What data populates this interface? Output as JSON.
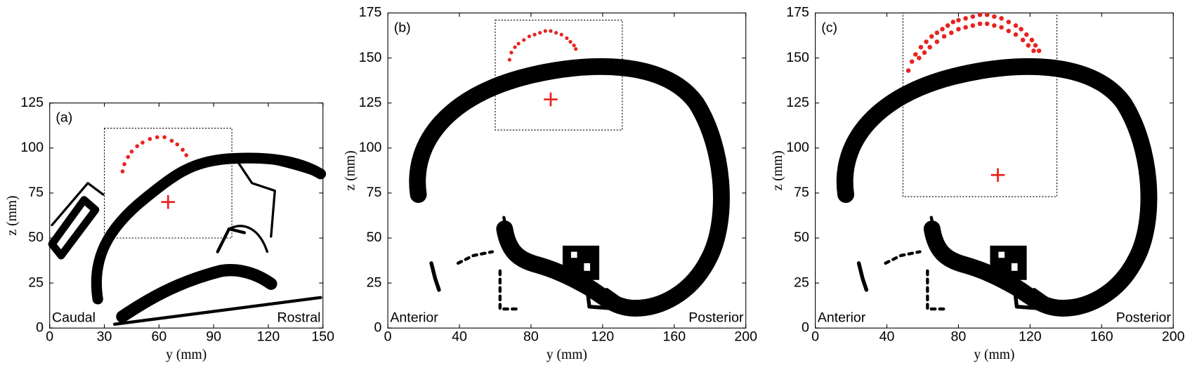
{
  "chart_data": [
    {
      "type": "scatter",
      "panel_label": "(a)",
      "xlabel": "y (mm)",
      "ylabel": "z (mm)",
      "xlim": [
        0,
        150
      ],
      "ylim": [
        0,
        125
      ],
      "xticks": [
        0,
        30,
        60,
        90,
        120,
        150
      ],
      "yticks": [
        0,
        25,
        50,
        75,
        100,
        125
      ],
      "annotations": [
        "Caudal",
        "Rostral"
      ],
      "points": {
        "color": "#e8231f",
        "x": [
          40,
          41,
          43,
          45,
          48,
          51,
          55,
          59,
          63,
          67,
          70,
          73,
          75
        ],
        "y": [
          87,
          91,
          95,
          98,
          101,
          103,
          105,
          106,
          106,
          104,
          102,
          99,
          96
        ]
      },
      "target": {
        "color": "#e8231f",
        "x": 65,
        "y": 70
      },
      "region": {
        "xlim": [
          30,
          100
        ],
        "ylim": [
          50,
          111
        ]
      }
    },
    {
      "type": "scatter",
      "panel_label": "(b)",
      "xlabel": "y (mm)",
      "ylabel": "z (mm)",
      "xlim": [
        0,
        200
      ],
      "ylim": [
        0,
        175
      ],
      "xticks": [
        0,
        40,
        80,
        120,
        160,
        200
      ],
      "yticks": [
        0,
        25,
        50,
        75,
        100,
        125,
        150,
        175
      ],
      "annotations": [
        "Anterior",
        "Posterior"
      ],
      "points": {
        "color": "#e8231f",
        "x": [
          68,
          69,
          71,
          73,
          76,
          79,
          82,
          85,
          88,
          91,
          94,
          97,
          100,
          102,
          104,
          105
        ],
        "y": [
          149,
          153,
          156,
          158,
          160,
          162,
          163,
          164,
          165,
          165,
          164,
          163,
          161,
          159,
          157,
          155
        ]
      },
      "target": {
        "color": "#e8231f",
        "x": 91,
        "y": 127
      },
      "region": {
        "xlim": [
          60,
          131
        ],
        "ylim": [
          110,
          171
        ]
      }
    },
    {
      "type": "scatter",
      "panel_label": "(c)",
      "xlabel": "y (mm)",
      "ylabel": "z (mm)",
      "xlim": [
        0,
        200
      ],
      "ylim": [
        0,
        175
      ],
      "xticks": [
        0,
        40,
        80,
        120,
        160,
        200
      ],
      "yticks": [
        0,
        25,
        50,
        75,
        100,
        125,
        150,
        175
      ],
      "annotations": [
        "Anterior",
        "Posterior"
      ],
      "points": {
        "color": "#e8231f",
        "x": [
          52,
          54,
          56,
          59,
          62,
          65,
          68,
          71,
          74,
          77,
          80,
          84,
          88,
          92,
          96,
          100,
          104,
          108,
          112,
          115,
          118,
          121,
          123,
          125,
          58,
          61,
          64,
          68,
          72,
          76,
          80,
          84,
          88,
          92,
          96,
          100,
          104,
          108,
          112,
          116,
          119,
          122
        ],
        "y": [
          143,
          148,
          152,
          156,
          159,
          162,
          164,
          166,
          168,
          170,
          171,
          172,
          173,
          174,
          174,
          173,
          172,
          170,
          168,
          166,
          163,
          160,
          157,
          154,
          150,
          153,
          156,
          159,
          162,
          164,
          166,
          167,
          168,
          169,
          169,
          168,
          167,
          165,
          163,
          160,
          157,
          154
        ]
      },
      "target": {
        "color": "#e8231f",
        "x": 102,
        "y": 85
      },
      "region": {
        "xlim": [
          49,
          135
        ],
        "ylim": [
          73,
          175
        ]
      }
    }
  ]
}
